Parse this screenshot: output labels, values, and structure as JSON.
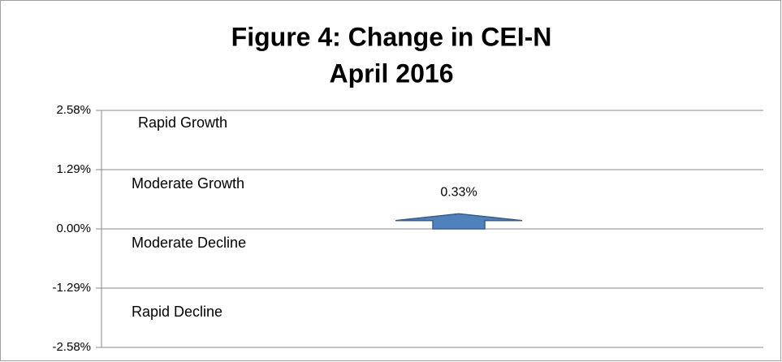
{
  "chart_data": {
    "type": "arrow",
    "title": [
      "Figure 4:  Change in CEI-N",
      "April 2016"
    ],
    "annotations": [
      "Rapid Growth",
      "Moderate Growth",
      "Moderate Decline",
      "Rapid Decline"
    ],
    "values": [
      0.33
    ],
    "value_labels": [
      "0.33%"
    ],
    "color": "#4f81bd",
    "ylim": [
      -2.58,
      2.58
    ],
    "yticks": [
      {
        "value": -2.58,
        "label": "-2.58%"
      },
      {
        "value": -1.29,
        "label": "-1.29%"
      },
      {
        "value": 0,
        "label": "0.00%"
      },
      {
        "value": 1.29,
        "label": "1.29%"
      },
      {
        "value": 2.58,
        "label": "2.58%"
      }
    ],
    "grid": true
  }
}
